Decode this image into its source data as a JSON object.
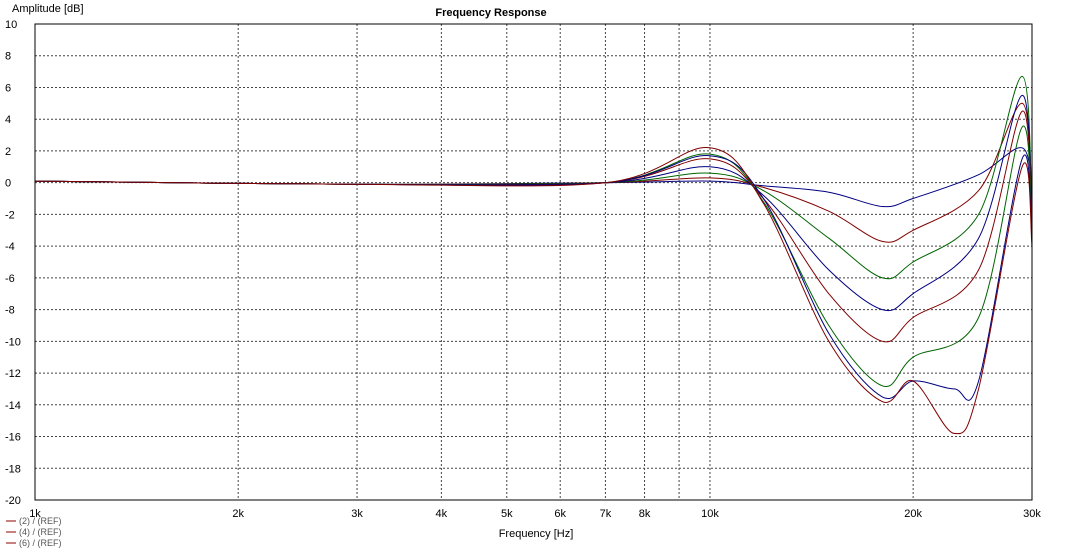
{
  "chart_data": {
    "type": "line",
    "title": "Frequency Response",
    "xlabel": "Frequency [Hz]",
    "ylabel": "Amplitude [dB]",
    "x_scale": "log",
    "xlim": [
      1000,
      30000
    ],
    "ylim": [
      -20,
      10
    ],
    "x_ticks": [
      {
        "value": 1000,
        "label": "1k"
      },
      {
        "value": 2000,
        "label": "2k"
      },
      {
        "value": 3000,
        "label": "3k"
      },
      {
        "value": 4000,
        "label": "4k"
      },
      {
        "value": 5000,
        "label": "5k"
      },
      {
        "value": 6000,
        "label": "6k"
      },
      {
        "value": 7000,
        "label": "7k"
      },
      {
        "value": 8000,
        "label": "8k"
      },
      {
        "value": 10000,
        "label": "10k"
      },
      {
        "value": 20000,
        "label": "20k"
      },
      {
        "value": 30000,
        "label": "30k"
      }
    ],
    "y_ticks": [
      10,
      8,
      6,
      4,
      2,
      0,
      -2,
      -4,
      -6,
      -8,
      -10,
      -12,
      -14,
      -16,
      -18,
      -20
    ],
    "grid": true,
    "grid_style": "dashed",
    "legend_position": "bottom-left",
    "legend": [
      {
        "label": "(2) / (REF)",
        "color": "#8b0000"
      },
      {
        "label": "(4) / (REF)",
        "color": "#8b0000"
      },
      {
        "label": "(6) / (REF)",
        "color": "#8b0000"
      }
    ],
    "series": [
      {
        "color": "#000080",
        "x": [
          1000,
          3000,
          7000,
          10000,
          12000,
          15000,
          18000,
          20000,
          25000,
          29000,
          30000
        ],
        "y": [
          0.1,
          -0.1,
          0,
          0.1,
          -0.2,
          -0.6,
          -1.5,
          -1.0,
          0.5,
          2.2,
          -0.5
        ]
      },
      {
        "color": "#800000",
        "x": [
          1000,
          3000,
          7000,
          10000,
          12000,
          15000,
          18000,
          20000,
          25000,
          29000,
          30000
        ],
        "y": [
          0.1,
          -0.1,
          0,
          0.3,
          -0.3,
          -1.8,
          -3.7,
          -3.0,
          -0.5,
          5.0,
          -1.0
        ]
      },
      {
        "color": "#006400",
        "x": [
          1000,
          3000,
          7000,
          10000,
          12000,
          15000,
          18000,
          20000,
          25000,
          29000,
          30000
        ],
        "y": [
          0.1,
          -0.1,
          0,
          0.6,
          -0.5,
          -3.5,
          -6.0,
          -5.0,
          -2.0,
          6.7,
          -2.0
        ]
      },
      {
        "color": "#000080",
        "x": [
          1000,
          3000,
          7000,
          10000,
          12000,
          15000,
          18000,
          20000,
          25000,
          29000,
          30000
        ],
        "y": [
          0.1,
          -0.1,
          0,
          1.0,
          -0.8,
          -5.5,
          -8.0,
          -7.0,
          -3.5,
          5.5,
          -2.5
        ]
      },
      {
        "color": "#800000",
        "x": [
          1000,
          3000,
          7000,
          10000,
          12000,
          15000,
          18000,
          20000,
          25000,
          29000,
          30000
        ],
        "y": [
          0.1,
          -0.1,
          0,
          1.5,
          -1.0,
          -7.0,
          -10.0,
          -8.5,
          -5.5,
          4.5,
          -3.0
        ]
      },
      {
        "color": "#006400",
        "x": [
          1000,
          3000,
          7000,
          10000,
          12000,
          15000,
          18000,
          20000,
          25000,
          29000,
          30000
        ],
        "y": [
          0.1,
          -0.1,
          0,
          1.8,
          -1.2,
          -9.0,
          -12.8,
          -11.0,
          -8.5,
          3.5,
          -3.5
        ]
      },
      {
        "color": "#000080",
        "x": [
          1000,
          3000,
          7000,
          10000,
          12000,
          15000,
          18000,
          20000,
          23000,
          25000,
          29000,
          30000
        ],
        "y": [
          0.1,
          -0.1,
          0,
          1.7,
          -1.0,
          -9.5,
          -13.5,
          -12.5,
          -13.0,
          -12.5,
          1.5,
          -3.5
        ]
      },
      {
        "color": "#800000",
        "x": [
          1000,
          3000,
          7000,
          10000,
          12000,
          15000,
          18000,
          20000,
          23000,
          25000,
          29000,
          30000
        ],
        "y": [
          0.1,
          -0.1,
          0,
          2.2,
          -1.3,
          -10.0,
          -13.8,
          -12.5,
          -15.8,
          -13.0,
          1.0,
          -4.0
        ]
      }
    ]
  }
}
